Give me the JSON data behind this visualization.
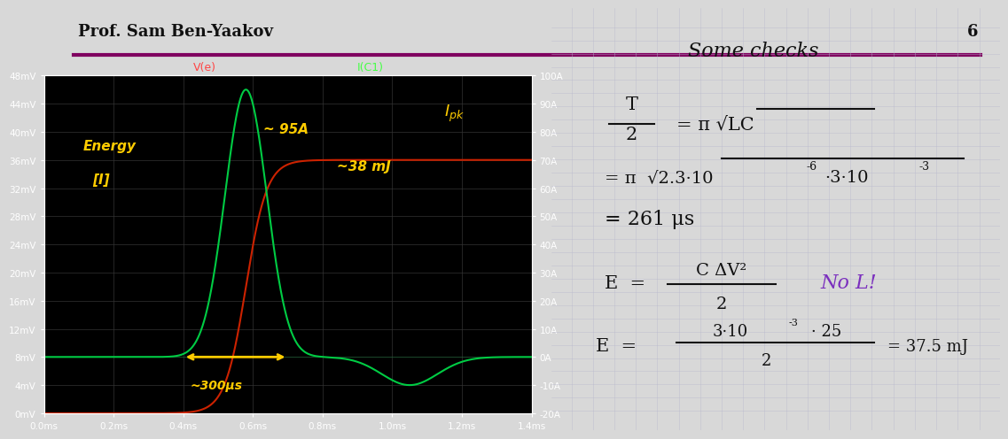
{
  "bg_color": "#f0f0f0",
  "slide_bg": "#e8e8e8",
  "header_text": "Prof. Sam Ben-Yaakov",
  "header_number": "6",
  "header_line_color": "#800060",
  "plot_bg": "#000000",
  "left_label": "V(e)",
  "left_label_color": "#ff4444",
  "right_label": "I(C1)",
  "right_label_color": "#44ff44",
  "left_ylim": [
    0,
    0.048
  ],
  "left_yticks": [
    0,
    0.004,
    0.008,
    0.012,
    0.016,
    0.02,
    0.024,
    0.028,
    0.032,
    0.036,
    0.04,
    0.044,
    0.048
  ],
  "left_yticklabels": [
    "0mV",
    "4mV",
    "8mV",
    "12mV",
    "16mV",
    "20mV",
    "24mV",
    "28mV",
    "32mV",
    "36mV",
    "40mV",
    "44mV",
    "48mV"
  ],
  "right_ylim": [
    -20,
    100
  ],
  "right_yticks": [
    -20,
    -10,
    0,
    10,
    20,
    30,
    40,
    50,
    60,
    70,
    80,
    90,
    100
  ],
  "right_yticklabels": [
    "-20A",
    "-10A",
    "0A",
    "10A",
    "20A",
    "30A",
    "40A",
    "50A",
    "60A",
    "70A",
    "80A",
    "90A",
    "100A"
  ],
  "xlim": [
    0,
    0.0014
  ],
  "xticks": [
    0,
    0.0002,
    0.0004,
    0.0006,
    0.0008,
    0.001,
    0.0012,
    0.0014
  ],
  "xticklabels": [
    "0.0ms",
    "0.2ms",
    "0.4ms",
    "0.6ms",
    "0.8ms",
    "1.0ms",
    "1.2ms",
    "1.4ms"
  ],
  "grid_color": "#333333",
  "red_line_color": "#cc2200",
  "green_line_color": "#00cc44",
  "annotation_color": "#ffcc00",
  "right_panel_bg": "#dcdcdc",
  "note_color_black": "#111111",
  "note_color_purple": "#7b2fbe"
}
